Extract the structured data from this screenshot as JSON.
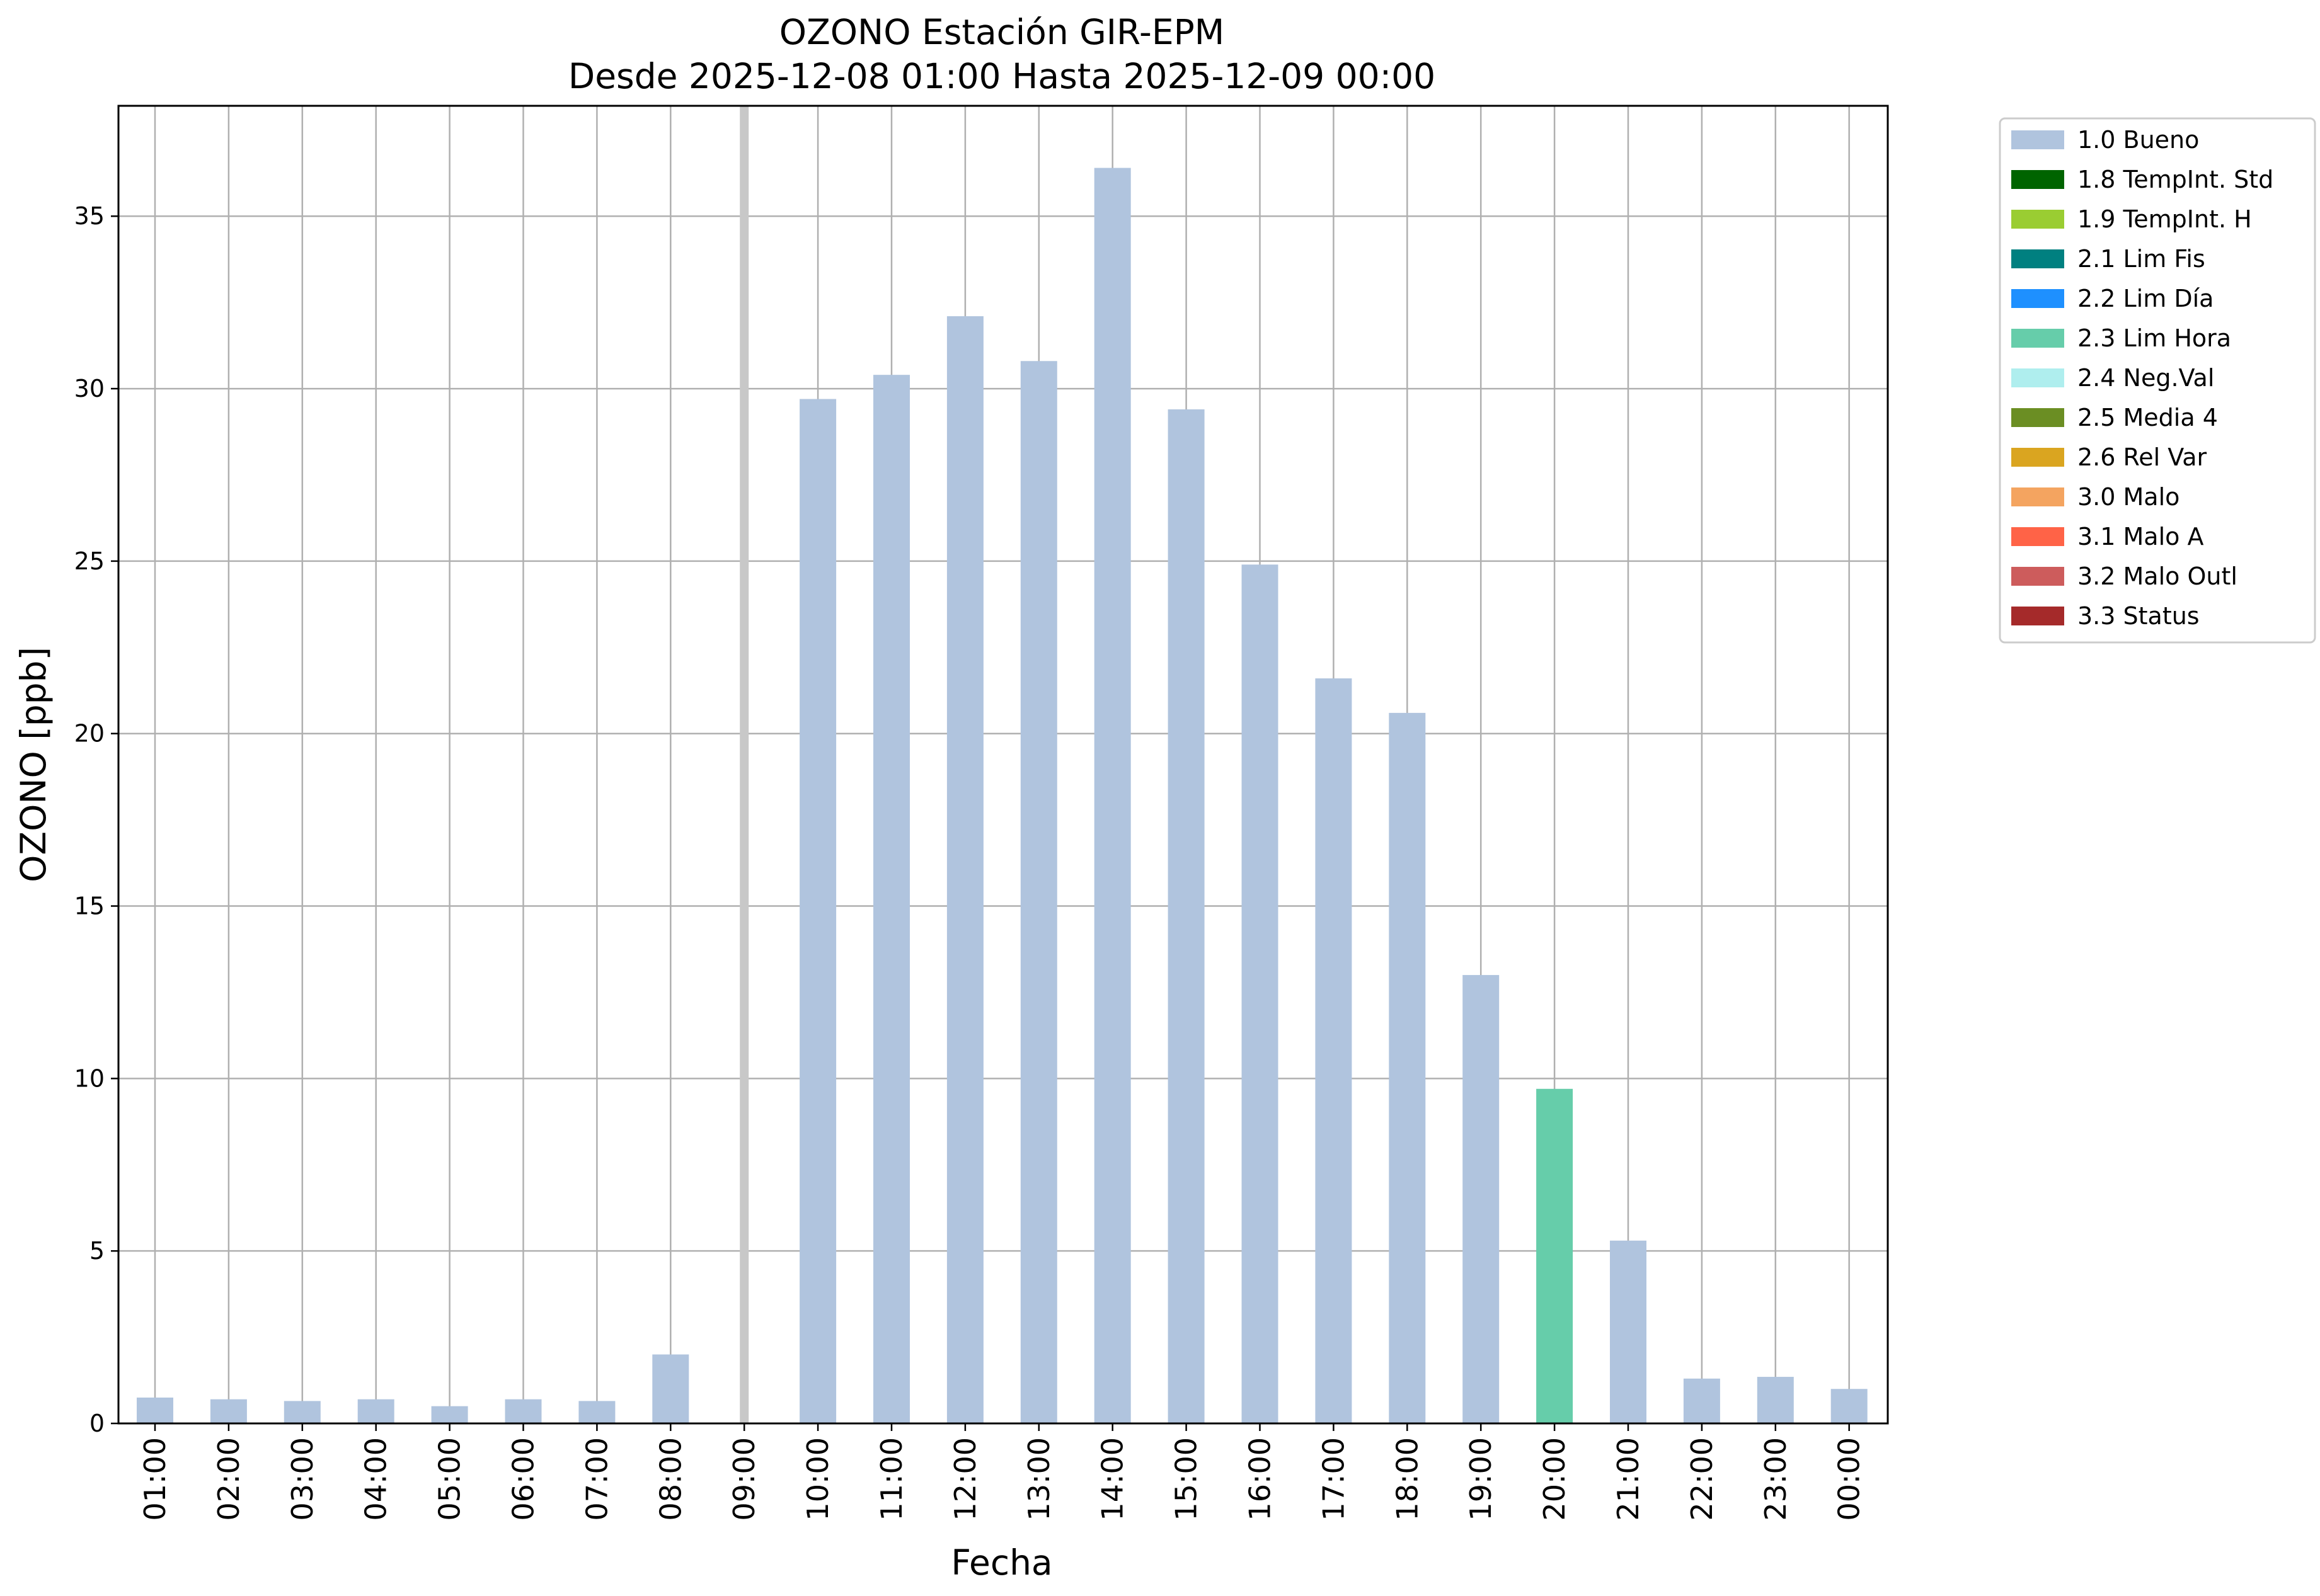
{
  "chart_data": {
    "type": "bar",
    "title": "OZONO Estación GIR-EPM",
    "subtitle": "Desde 2025-12-08 01:00 Hasta 2025-12-09 00:00",
    "xlabel": "Fecha",
    "ylabel": "OZONO [ppb]",
    "ylim": [
      0,
      38.2
    ],
    "yticks": [
      0,
      5,
      10,
      15,
      20,
      25,
      30,
      35
    ],
    "grid": true,
    "legend_position": "outside-top-right",
    "categories": [
      "01:00",
      "02:00",
      "03:00",
      "04:00",
      "05:00",
      "06:00",
      "07:00",
      "08:00",
      "09:00",
      "10:00",
      "11:00",
      "12:00",
      "13:00",
      "14:00",
      "15:00",
      "16:00",
      "17:00",
      "18:00",
      "19:00",
      "20:00",
      "21:00",
      "22:00",
      "23:00",
      "00:00"
    ],
    "values": [
      0.75,
      0.7,
      0.65,
      0.7,
      0.5,
      0.7,
      0.65,
      2.0,
      null,
      29.7,
      30.4,
      32.1,
      30.8,
      36.4,
      29.4,
      24.9,
      21.6,
      20.6,
      13.0,
      9.7,
      5.3,
      1.3,
      1.35,
      1.0
    ],
    "flags": [
      "1.0 Bueno",
      "1.0 Bueno",
      "1.0 Bueno",
      "1.0 Bueno",
      "1.0 Bueno",
      "1.0 Bueno",
      "1.0 Bueno",
      "1.0 Bueno",
      null,
      "1.0 Bueno",
      "1.0 Bueno",
      "1.0 Bueno",
      "1.0 Bueno",
      "1.0 Bueno",
      "1.0 Bueno",
      "1.0 Bueno",
      "1.0 Bueno",
      "1.0 Bueno",
      "1.0 Bueno",
      "2.3 Lim Hora",
      "1.0 Bueno",
      "1.0 Bueno",
      "1.0 Bueno",
      "1.0 Bueno"
    ],
    "missing_marker": "09:00",
    "legend": [
      {
        "label": "1.0 Bueno",
        "color": "#b0c4de"
      },
      {
        "label": "1.8 TempInt. Std",
        "color": "#006400"
      },
      {
        "label": "1.9 TempInt. H",
        "color": "#9acd32"
      },
      {
        "label": "2.1 Lim Fis",
        "color": "#008080"
      },
      {
        "label": "2.2 Lim Día",
        "color": "#1e90ff"
      },
      {
        "label": "2.3 Lim Hora",
        "color": "#66cdaa"
      },
      {
        "label": "2.4 Neg.Val",
        "color": "#afeeee"
      },
      {
        "label": "2.5 Media 4",
        "color": "#6b8e23"
      },
      {
        "label": "2.6 Rel Var",
        "color": "#daa520"
      },
      {
        "label": "3.0 Malo",
        "color": "#f4a460"
      },
      {
        "label": "3.1 Malo A",
        "color": "#ff6347"
      },
      {
        "label": "3.2 Malo Outl",
        "color": "#cd5c5c"
      },
      {
        "label": "3.3 Status",
        "color": "#a52a2a"
      }
    ]
  }
}
